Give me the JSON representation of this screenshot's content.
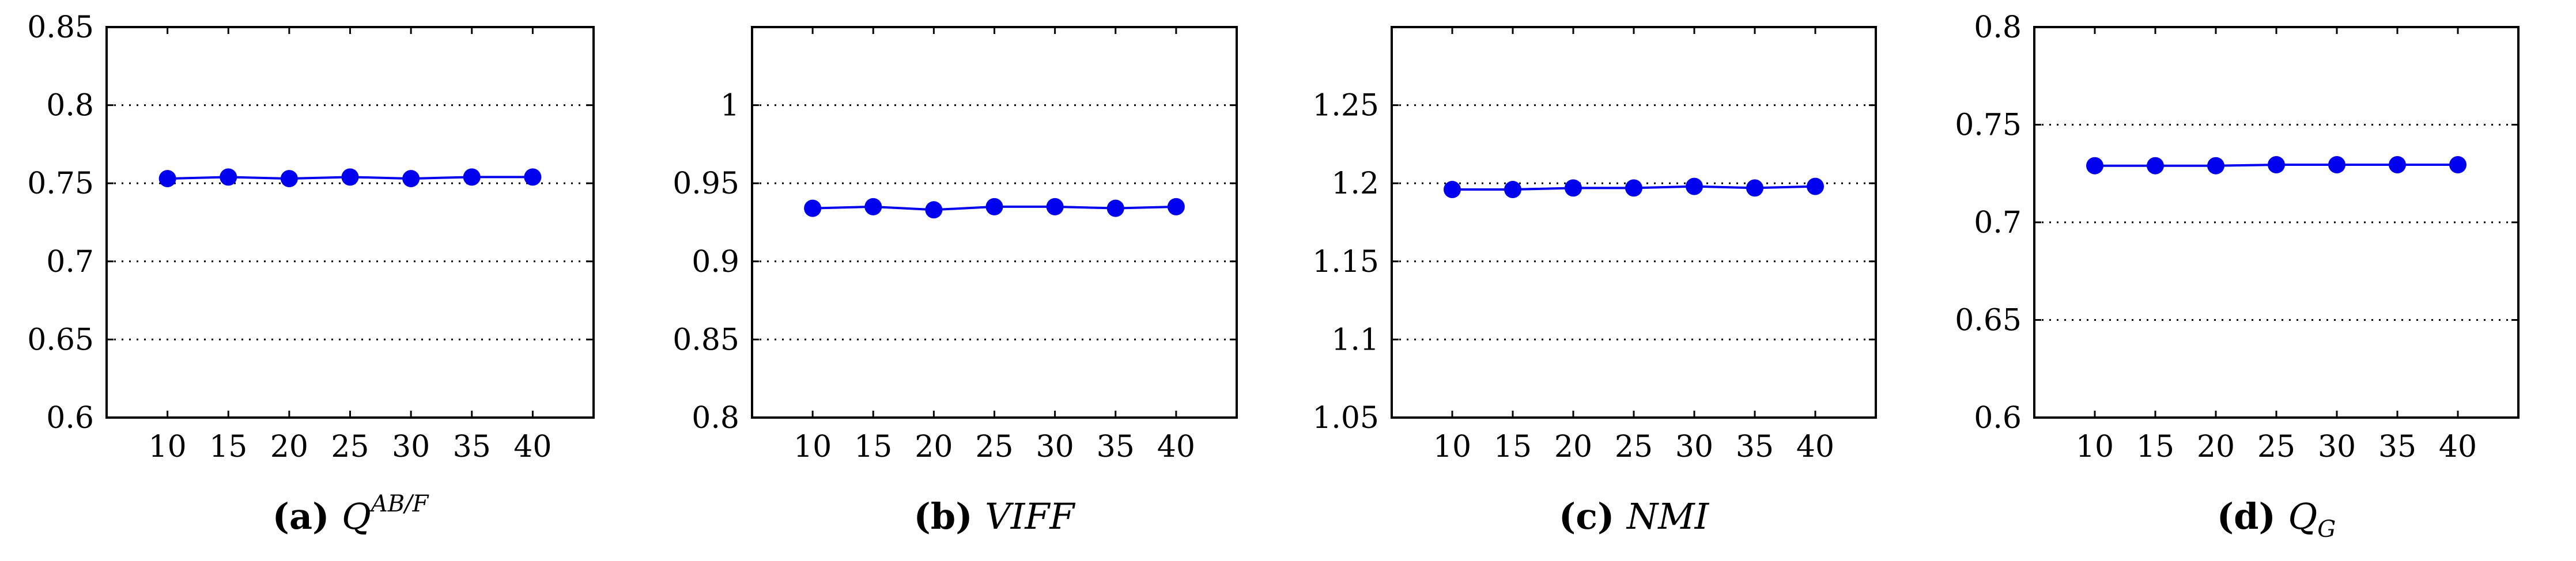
{
  "chart_data": [
    {
      "type": "line",
      "caption_letter": "(a)",
      "caption_metric": "Q",
      "caption_sup": "AB/F",
      "caption_sub": "",
      "x": [
        10,
        15,
        20,
        25,
        30,
        35,
        40
      ],
      "x_ticks": [
        "10",
        "15",
        "20",
        "25",
        "30",
        "35",
        "40"
      ],
      "xlim": [
        5,
        45
      ],
      "y_ticks": [
        "0.6",
        "0.65",
        "0.7",
        "0.75",
        "0.8",
        "0.85"
      ],
      "y_tick_values": [
        0.6,
        0.65,
        0.7,
        0.75,
        0.8,
        0.85
      ],
      "ylim": [
        0.6,
        0.85
      ],
      "grid_values": [
        0.65,
        0.7,
        0.75,
        0.8
      ],
      "series": [
        {
          "values": [
            0.753,
            0.754,
            0.753,
            0.754,
            0.753,
            0.754,
            0.754
          ],
          "color": "#0000ee"
        }
      ]
    },
    {
      "type": "line",
      "caption_letter": "(b)",
      "caption_metric": "VIFF",
      "caption_sup": "",
      "caption_sub": "",
      "x": [
        10,
        15,
        20,
        25,
        30,
        35,
        40
      ],
      "x_ticks": [
        "10",
        "15",
        "20",
        "25",
        "30",
        "35",
        "40"
      ],
      "xlim": [
        5,
        45
      ],
      "y_ticks": [
        "0.8",
        "0.85",
        "0.9",
        "0.95",
        "1"
      ],
      "y_tick_values": [
        0.8,
        0.85,
        0.9,
        0.95,
        1.0
      ],
      "ylim": [
        0.8,
        1.05
      ],
      "grid_values": [
        0.85,
        0.9,
        0.95,
        1.0
      ],
      "series": [
        {
          "values": [
            0.934,
            0.935,
            0.933,
            0.935,
            0.935,
            0.934,
            0.935
          ],
          "color": "#0000ee"
        }
      ]
    },
    {
      "type": "line",
      "caption_letter": "(c)",
      "caption_metric": "NMI",
      "caption_sup": "",
      "caption_sub": "",
      "x": [
        10,
        15,
        20,
        25,
        30,
        35,
        40
      ],
      "x_ticks": [
        "10",
        "15",
        "20",
        "25",
        "30",
        "35",
        "40"
      ],
      "xlim": [
        5,
        45
      ],
      "y_ticks": [
        "1.05",
        "1.1",
        "1.15",
        "1.2",
        "1.25"
      ],
      "y_tick_values": [
        1.05,
        1.1,
        1.15,
        1.2,
        1.25
      ],
      "ylim": [
        1.05,
        1.3
      ],
      "grid_values": [
        1.1,
        1.15,
        1.2,
        1.25
      ],
      "series": [
        {
          "values": [
            1.196,
            1.196,
            1.197,
            1.197,
            1.198,
            1.197,
            1.198
          ],
          "color": "#0000ee"
        }
      ]
    },
    {
      "type": "line",
      "caption_letter": "(d)",
      "caption_metric": "Q",
      "caption_sup": "",
      "caption_sub": "G",
      "x": [
        10,
        15,
        20,
        25,
        30,
        35,
        40
      ],
      "x_ticks": [
        "10",
        "15",
        "20",
        "25",
        "30",
        "35",
        "40"
      ],
      "xlim": [
        5,
        45
      ],
      "y_ticks": [
        "0.6",
        "0.65",
        "0.7",
        "0.75",
        "0.8"
      ],
      "y_tick_values": [
        0.6,
        0.65,
        0.7,
        0.75,
        0.8
      ],
      "ylim": [
        0.6,
        0.8
      ],
      "grid_values": [
        0.65,
        0.7,
        0.75
      ],
      "series": [
        {
          "values": [
            0.729,
            0.729,
            0.729,
            0.7295,
            0.7295,
            0.7295,
            0.7295
          ],
          "color": "#0000ee"
        }
      ]
    }
  ]
}
